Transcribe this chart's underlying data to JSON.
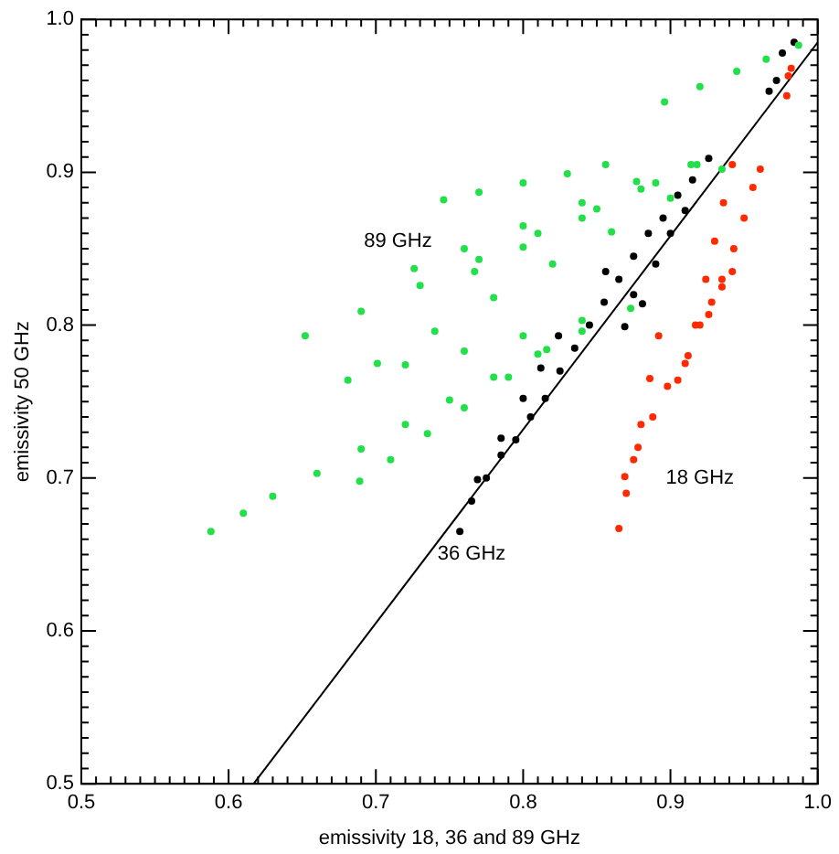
{
  "chart_data": {
    "type": "scatter",
    "xlabel": "emissivity 18, 36 and 89 GHz",
    "ylabel": "emissivity 50 GHz",
    "xlim": [
      0.5,
      1.0
    ],
    "ylim": [
      0.5,
      1.0
    ],
    "marker": "circle",
    "grid": false,
    "legend": false,
    "xticks": [
      0.5,
      {
        "value": 0.51,
        "label": null
      },
      {
        "value": 0.52,
        "label": null
      },
      {
        "value": 0.53,
        "label": null
      },
      {
        "value": 0.54,
        "label": null
      },
      {
        "value": 0.55,
        "label": null
      },
      {
        "value": 0.56,
        "label": null
      },
      {
        "value": 0.57,
        "label": null
      },
      {
        "value": 0.58,
        "label": null
      },
      {
        "value": 0.59,
        "label": null
      },
      0.6,
      {
        "value": 0.61,
        "label": null
      },
      {
        "value": 0.62,
        "label": null
      },
      {
        "value": 0.63,
        "label": null
      },
      {
        "value": 0.64,
        "label": null
      },
      {
        "value": 0.65,
        "label": null
      },
      {
        "value": 0.66,
        "label": null
      },
      {
        "value": 0.67,
        "label": null
      },
      {
        "value": 0.68,
        "label": null
      },
      {
        "value": 0.69,
        "label": null
      },
      0.7,
      {
        "value": 0.71,
        "label": null
      },
      {
        "value": 0.72,
        "label": null
      },
      {
        "value": 0.73,
        "label": null
      },
      {
        "value": 0.74,
        "label": null
      },
      {
        "value": 0.75,
        "label": null
      },
      {
        "value": 0.76,
        "label": null
      },
      {
        "value": 0.77,
        "label": null
      },
      {
        "value": 0.78,
        "label": null
      },
      {
        "value": 0.79,
        "label": null
      },
      0.8,
      {
        "value": 0.81,
        "label": null
      },
      {
        "value": 0.82,
        "label": null
      },
      {
        "value": 0.83,
        "label": null
      },
      {
        "value": 0.84,
        "label": null
      },
      {
        "value": 0.85,
        "label": null
      },
      {
        "value": 0.86,
        "label": null
      },
      {
        "value": 0.87,
        "label": null
      },
      {
        "value": 0.88,
        "label": null
      },
      {
        "value": 0.89,
        "label": null
      },
      0.9,
      {
        "value": 0.91,
        "label": null
      },
      {
        "value": 0.92,
        "label": null
      },
      {
        "value": 0.93,
        "label": null
      },
      {
        "value": 0.94,
        "label": null
      },
      {
        "value": 0.95,
        "label": null
      },
      {
        "value": 0.96,
        "label": null
      },
      {
        "value": 0.97,
        "label": null
      },
      {
        "value": 0.98,
        "label": null
      },
      {
        "value": 0.99,
        "label": null
      },
      {
        "value": 1.0,
        "label": "1.0"
      }
    ],
    "yticks": [
      0.5,
      {
        "value": 0.51,
        "label": null
      },
      {
        "value": 0.52,
        "label": null
      },
      {
        "value": 0.53,
        "label": null
      },
      {
        "value": 0.54,
        "label": null
      },
      {
        "value": 0.55,
        "label": null
      },
      {
        "value": 0.56,
        "label": null
      },
      {
        "value": 0.57,
        "label": null
      },
      {
        "value": 0.58,
        "label": null
      },
      {
        "value": 0.59,
        "label": null
      },
      0.6,
      {
        "value": 0.61,
        "label": null
      },
      {
        "value": 0.62,
        "label": null
      },
      {
        "value": 0.63,
        "label": null
      },
      {
        "value": 0.64,
        "label": null
      },
      {
        "value": 0.65,
        "label": null
      },
      {
        "value": 0.66,
        "label": null
      },
      {
        "value": 0.67,
        "label": null
      },
      {
        "value": 0.68,
        "label": null
      },
      {
        "value": 0.69,
        "label": null
      },
      0.7,
      {
        "value": 0.71,
        "label": null
      },
      {
        "value": 0.72,
        "label": null
      },
      {
        "value": 0.73,
        "label": null
      },
      {
        "value": 0.74,
        "label": null
      },
      {
        "value": 0.75,
        "label": null
      },
      {
        "value": 0.76,
        "label": null
      },
      {
        "value": 0.77,
        "label": null
      },
      {
        "value": 0.78,
        "label": null
      },
      {
        "value": 0.79,
        "label": null
      },
      0.8,
      {
        "value": 0.81,
        "label": null
      },
      {
        "value": 0.82,
        "label": null
      },
      {
        "value": 0.83,
        "label": null
      },
      {
        "value": 0.84,
        "label": null
      },
      {
        "value": 0.85,
        "label": null
      },
      {
        "value": 0.86,
        "label": null
      },
      {
        "value": 0.87,
        "label": null
      },
      {
        "value": 0.88,
        "label": null
      },
      {
        "value": 0.89,
        "label": null
      },
      0.9,
      {
        "value": 0.91,
        "label": null
      },
      {
        "value": 0.92,
        "label": null
      },
      {
        "value": 0.93,
        "label": null
      },
      {
        "value": 0.94,
        "label": null
      },
      {
        "value": 0.95,
        "label": null
      },
      {
        "value": 0.96,
        "label": null
      },
      {
        "value": 0.97,
        "label": null
      },
      {
        "value": 0.98,
        "label": null
      },
      {
        "value": 0.99,
        "label": null
      },
      {
        "value": 1.0,
        "label": "1.0"
      }
    ],
    "series": [
      {
        "name": "89 GHz",
        "type": "scatter",
        "color": "#22e04a",
        "x": [
          0.588,
          0.61,
          0.63,
          0.66,
          0.69,
          0.72,
          0.75,
          0.78,
          0.81,
          0.84,
          0.689,
          0.71,
          0.735,
          0.76,
          0.79,
          0.816,
          0.681,
          0.72,
          0.76,
          0.8,
          0.84,
          0.873,
          0.652,
          0.69,
          0.73,
          0.77,
          0.81,
          0.85,
          0.89,
          0.918,
          0.701,
          0.74,
          0.78,
          0.82,
          0.86,
          0.9,
          0.935,
          0.746,
          0.77,
          0.8,
          0.83,
          0.856,
          0.767,
          0.8,
          0.84,
          0.88,
          0.914,
          0.726,
          0.76,
          0.8,
          0.84,
          0.877,
          0.896,
          0.92,
          0.945,
          0.965,
          0.987
        ],
        "values": [
          0.665,
          0.677,
          0.688,
          0.703,
          0.719,
          0.735,
          0.751,
          0.766,
          0.781,
          0.796,
          0.698,
          0.712,
          0.729,
          0.746,
          0.766,
          0.784,
          0.764,
          0.774,
          0.783,
          0.793,
          0.803,
          0.811,
          0.793,
          0.809,
          0.826,
          0.843,
          0.86,
          0.876,
          0.893,
          0.905,
          0.775,
          0.796,
          0.818,
          0.84,
          0.861,
          0.883,
          0.902,
          0.882,
          0.887,
          0.893,
          0.899,
          0.905,
          0.835,
          0.851,
          0.87,
          0.889,
          0.905,
          0.837,
          0.85,
          0.865,
          0.88,
          0.894,
          0.946,
          0.956,
          0.966,
          0.974,
          0.983
        ]
      },
      {
        "name": "36 GHz",
        "type": "scatter",
        "color": "#000000",
        "x": [
          0.757,
          0.765,
          0.775,
          0.785,
          0.795,
          0.805,
          0.815,
          0.825,
          0.835,
          0.845,
          0.855,
          0.865,
          0.875,
          0.885,
          0.895,
          0.905,
          0.915,
          0.926,
          0.769,
          0.785,
          0.8,
          0.812,
          0.824,
          0.856,
          0.869,
          0.881,
          0.89,
          0.9,
          0.875,
          0.91,
          0.967,
          0.972,
          0.976,
          0.984
        ],
        "values": [
          0.665,
          0.685,
          0.7,
          0.715,
          0.725,
          0.74,
          0.752,
          0.77,
          0.785,
          0.8,
          0.815,
          0.83,
          0.845,
          0.86,
          0.87,
          0.885,
          0.895,
          0.909,
          0.699,
          0.726,
          0.752,
          0.772,
          0.793,
          0.835,
          0.799,
          0.814,
          0.84,
          0.86,
          0.82,
          0.875,
          0.953,
          0.96,
          0.978,
          0.985
        ]
      },
      {
        "name": "18 GHz",
        "type": "scatter",
        "color": "#ff2a00",
        "x": [
          0.865,
          0.87,
          0.875,
          0.88,
          0.886,
          0.892,
          0.869,
          0.878,
          0.888,
          0.898,
          0.905,
          0.912,
          0.92,
          0.928,
          0.935,
          0.942,
          0.91,
          0.917,
          0.924,
          0.93,
          0.936,
          0.942,
          0.926,
          0.935,
          0.943,
          0.95,
          0.956,
          0.961,
          0.979,
          0.98,
          0.982
        ],
        "values": [
          0.667,
          0.69,
          0.712,
          0.735,
          0.765,
          0.793,
          0.701,
          0.72,
          0.74,
          0.76,
          0.764,
          0.78,
          0.8,
          0.815,
          0.825,
          0.835,
          0.775,
          0.8,
          0.83,
          0.855,
          0.88,
          0.905,
          0.807,
          0.83,
          0.85,
          0.87,
          0.89,
          0.902,
          0.95,
          0.963,
          0.968
        ]
      },
      {
        "type": "line",
        "marker": "none",
        "color": "#000000",
        "x": [
          0.617,
          1.0
        ],
        "values": [
          0.5,
          0.985
        ]
      }
    ]
  }
}
